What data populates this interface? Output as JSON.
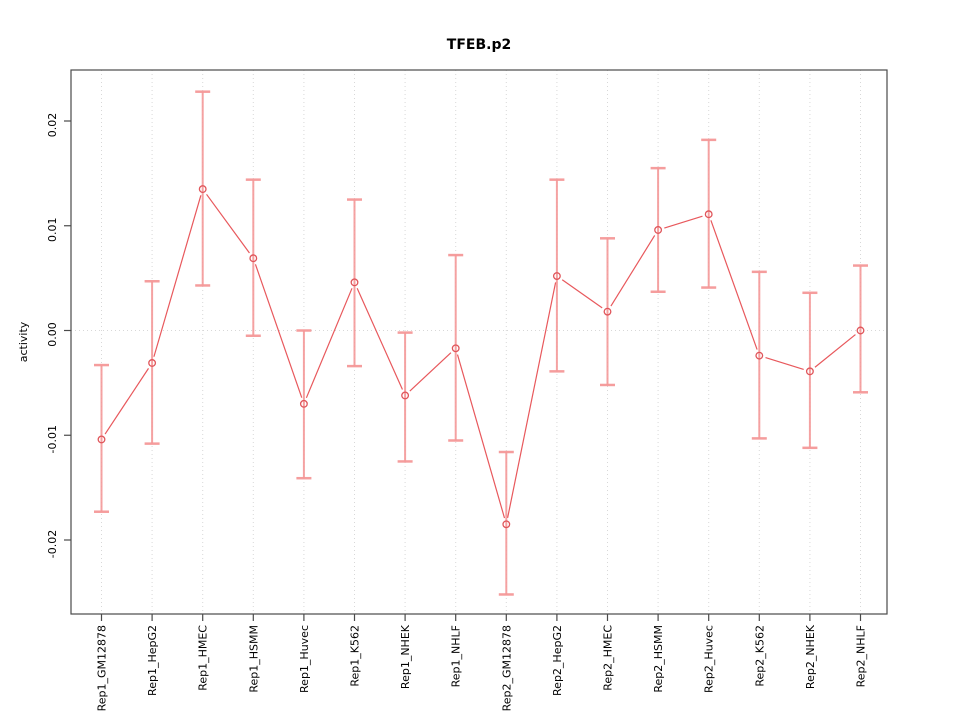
{
  "figure": {
    "background": "#ffffff"
  },
  "chart_data": {
    "type": "line",
    "title": "TFEB.p2",
    "xlabel": "",
    "ylabel": "activity",
    "categories": [
      "Rep1_GM12878",
      "Rep1_HepG2",
      "Rep1_HMEC",
      "Rep1_HSMM",
      "Rep1_Huvec",
      "Rep1_K562",
      "Rep1_NHEK",
      "Rep1_NHLF",
      "Rep2_GM12878",
      "Rep2_HepG2",
      "Rep2_HMEC",
      "Rep2_HSMM",
      "Rep2_Huvec",
      "Rep2_K562",
      "Rep2_NHEK",
      "Rep2_NHLF"
    ],
    "series": [
      {
        "name": "activity",
        "values": [
          -0.0104,
          -0.0031,
          0.0135,
          0.0069,
          -0.007,
          0.0046,
          -0.0062,
          -0.0017,
          -0.0185,
          0.0052,
          0.0018,
          0.0096,
          0.0111,
          -0.0024,
          -0.0039,
          0.0
        ],
        "upper": [
          -0.0033,
          0.0047,
          0.0228,
          0.0144,
          0.0,
          0.0125,
          -0.0002,
          0.0072,
          -0.0116,
          0.0144,
          0.0088,
          0.0155,
          0.0182,
          0.0056,
          0.0036,
          0.0062
        ],
        "lower": [
          -0.0173,
          -0.0108,
          0.0043,
          -0.0005,
          -0.0141,
          -0.0034,
          -0.0125,
          -0.0105,
          -0.0252,
          -0.0039,
          -0.0052,
          0.0037,
          0.0041,
          -0.0103,
          -0.0112,
          -0.0059
        ]
      }
    ],
    "yticks": [
      -0.02,
      -0.01,
      0.0,
      0.01,
      0.02
    ],
    "ylim": [
      -0.0271,
      0.0249
    ],
    "grid": "vertical dotted gridline at each category; horizontal dotted line at y=0 only",
    "legend": "none",
    "marker": "open-circle",
    "colors": {
      "line": "#e8585c",
      "point": "#e0555a",
      "error_bar": "#f49898",
      "grid": "#d8d8d8",
      "axis": "#4a4a4a",
      "text": "#000000"
    }
  }
}
